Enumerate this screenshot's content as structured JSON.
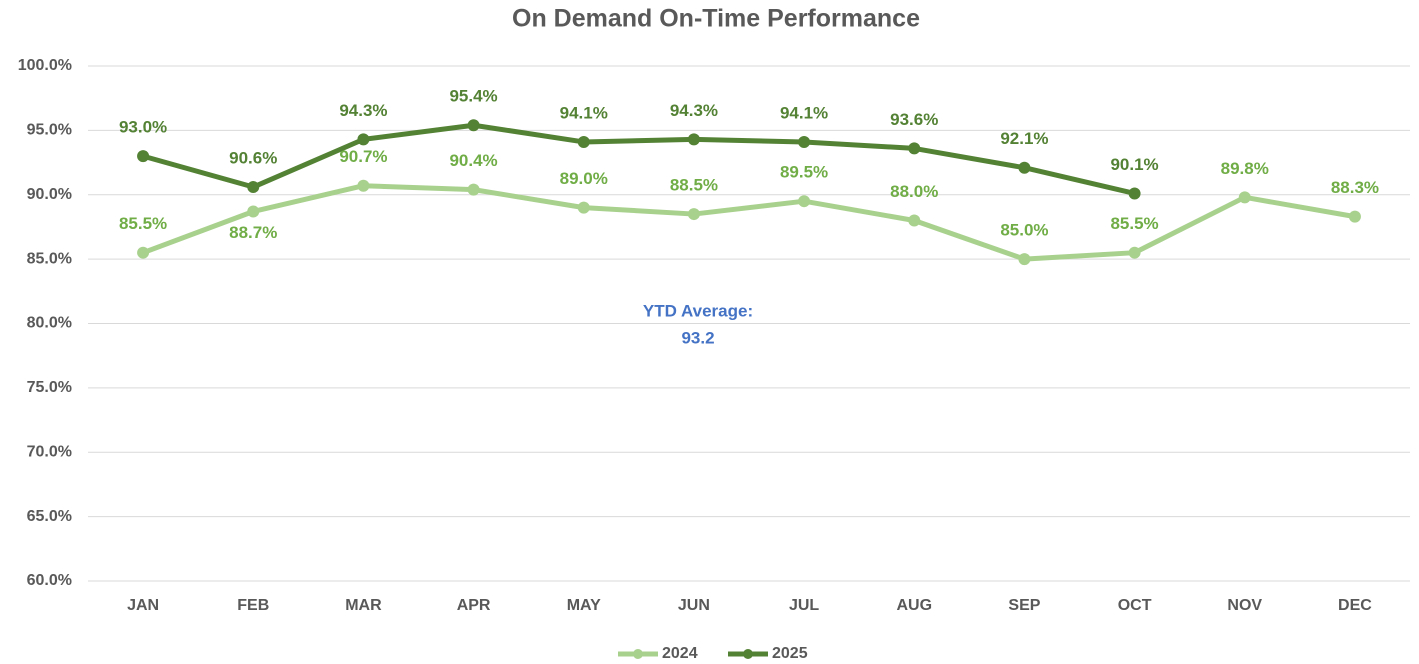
{
  "chart_data": {
    "type": "line",
    "title": "On Demand On-Time Performance",
    "categories": [
      "JAN",
      "FEB",
      "MAR",
      "APR",
      "MAY",
      "JUN",
      "JUL",
      "AUG",
      "SEP",
      "OCT",
      "NOV",
      "DEC"
    ],
    "series": [
      {
        "name": "2024",
        "color": "#a9d18e",
        "label_color": "#70ad47",
        "values": [
          85.5,
          88.7,
          90.7,
          90.4,
          89.0,
          88.5,
          89.5,
          88.0,
          85.0,
          85.5,
          89.8,
          88.3
        ],
        "value_labels": [
          "85.5%",
          "88.7%",
          "90.7%",
          "90.4%",
          "89.0%",
          "88.5%",
          "89.5%",
          "88.0%",
          "85.0%",
          "85.5%",
          "89.8%",
          "88.3%"
        ]
      },
      {
        "name": "2025",
        "color": "#548235",
        "label_color": "#548235",
        "values": [
          93.0,
          90.6,
          94.3,
          95.4,
          94.1,
          94.3,
          94.1,
          93.6,
          92.1,
          90.1,
          null,
          null
        ],
        "value_labels": [
          "93.0%",
          "90.6%",
          "94.3%",
          "95.4%",
          "94.1%",
          "94.3%",
          "94.1%",
          "93.6%",
          "92.1%",
          "90.1%",
          null,
          null
        ]
      }
    ],
    "ylim": [
      60,
      100
    ],
    "yticks": [
      {
        "value": 60,
        "label": "60.0%"
      },
      {
        "value": 65,
        "label": "65.0%"
      },
      {
        "value": 70,
        "label": "70.0%"
      },
      {
        "value": 75,
        "label": "75.0%"
      },
      {
        "value": 80,
        "label": "80.0%"
      },
      {
        "value": 85,
        "label": "85.0%"
      },
      {
        "value": 90,
        "label": "90.0%"
      },
      {
        "value": 95,
        "label": "95.0%"
      },
      {
        "value": 100,
        "label": "100.0%"
      }
    ],
    "grid": true,
    "legend": "bottom",
    "annotation": {
      "label": "YTD Average:",
      "value": 93.2
    }
  }
}
